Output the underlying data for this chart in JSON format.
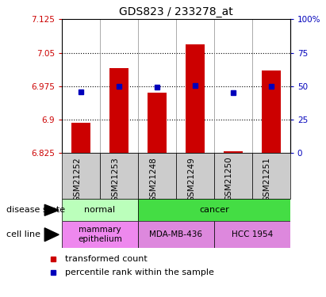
{
  "title": "GDS823 / 233278_at",
  "samples": [
    "GSM21252",
    "GSM21253",
    "GSM21248",
    "GSM21249",
    "GSM21250",
    "GSM21251"
  ],
  "bar_values": [
    6.893,
    7.015,
    6.96,
    7.068,
    6.828,
    7.01
  ],
  "bar_baseline": 6.825,
  "percentile_values": [
    6.962,
    6.975,
    6.972,
    6.976,
    6.96,
    6.975
  ],
  "ylim_left": [
    6.825,
    7.125
  ],
  "ylim_right": [
    0,
    100
  ],
  "yticks_left": [
    6.825,
    6.9,
    6.975,
    7.05,
    7.125
  ],
  "ytick_labels_left": [
    "6.825",
    "6.9",
    "6.975",
    "7.05",
    "7.125"
  ],
  "yticks_right": [
    0,
    25,
    50,
    75,
    100
  ],
  "ytick_labels_right": [
    "0",
    "25",
    "50",
    "75",
    "100%"
  ],
  "bar_color": "#cc0000",
  "blue_color": "#0000bb",
  "dotted_yticks": [
    6.9,
    6.975,
    7.05
  ],
  "disease_state_groups": [
    {
      "label": "normal",
      "start": 0,
      "end": 2,
      "color": "#bbffbb"
    },
    {
      "label": "cancer",
      "start": 2,
      "end": 6,
      "color": "#44dd44"
    }
  ],
  "cell_line_groups": [
    {
      "label": "mammary\nepithelium",
      "start": 0,
      "end": 2,
      "color": "#ee88ee"
    },
    {
      "label": "MDA-MB-436",
      "start": 2,
      "end": 4,
      "color": "#dd88dd"
    },
    {
      "label": "HCC 1954",
      "start": 4,
      "end": 6,
      "color": "#dd88dd"
    }
  ],
  "disease_state_label": "disease state",
  "cell_line_label": "cell line",
  "legend_items": [
    {
      "label": "transformed count",
      "color": "#cc0000"
    },
    {
      "label": "percentile rank within the sample",
      "color": "#0000bb"
    }
  ],
  "background_color": "#ffffff",
  "sample_box_color": "#cccccc",
  "bar_width": 0.5,
  "left_label_color": "#cc0000",
  "right_label_color": "#0000bb"
}
